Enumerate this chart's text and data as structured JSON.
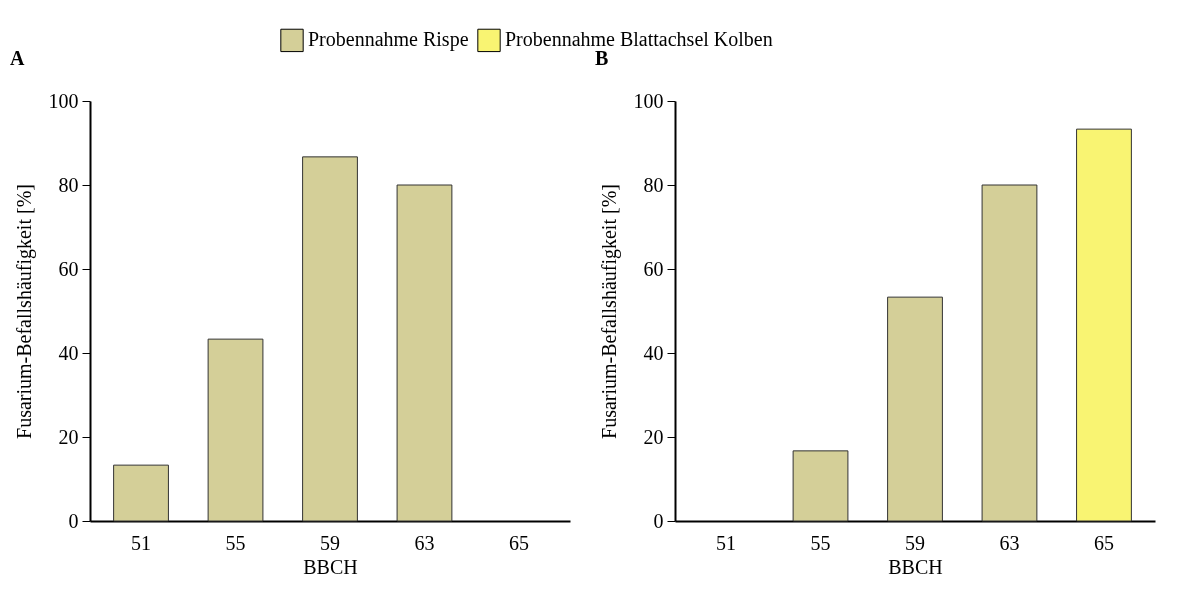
{
  "chart_data": [
    {
      "type": "bar",
      "title": "A",
      "xlabel": "BBCH",
      "ylabel": "Fusarium-Befallshäufigkeit [%]",
      "categories": [
        "51",
        "55",
        "59",
        "63",
        "65"
      ],
      "series": [
        {
          "color": "#d4cf98",
          "values": [
            13.3,
            43.3,
            86.7,
            80,
            0
          ]
        }
      ],
      "ylim": [
        0,
        100
      ],
      "yticks": [
        0,
        20,
        40,
        60,
        80,
        100
      ],
      "grid": false,
      "legend": false
    },
    {
      "type": "bar",
      "title": "B",
      "xlabel": "BBCH",
      "ylabel": "Fusarium-Befallshäufigkeit [%]",
      "categories": [
        "51",
        "55",
        "59",
        "63",
        "65"
      ],
      "series": [
        {
          "name": "Probennahme Rispe",
          "color": "#d4cf98",
          "values": [
            0,
            16.7,
            53.3,
            80,
            null
          ]
        },
        {
          "name": "Probennahme Blattachsel Kolben",
          "color": "#f9f472",
          "values": [
            null,
            null,
            null,
            null,
            93.3
          ]
        }
      ],
      "ylim": [
        0,
        100
      ],
      "yticks": [
        0,
        20,
        40,
        60,
        80,
        100
      ],
      "grid": false,
      "legend": "top"
    }
  ]
}
